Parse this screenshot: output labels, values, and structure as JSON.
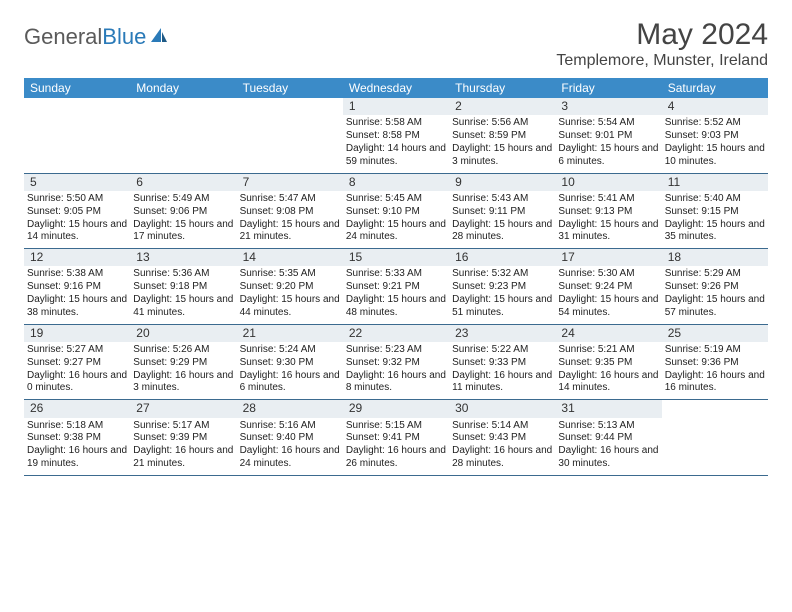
{
  "brand": {
    "part1": "General",
    "part2": "Blue"
  },
  "title": "May 2024",
  "location": "Templemore, Munster, Ireland",
  "colors": {
    "header_bg": "#3b8bc8",
    "header_text": "#ffffff",
    "daynum_bg": "#e9eef2",
    "week_border": "#3b6a8f",
    "text": "#222222",
    "logo_gray": "#5a5a5a",
    "logo_blue": "#2a7ab8"
  },
  "day_labels": [
    "Sunday",
    "Monday",
    "Tuesday",
    "Wednesday",
    "Thursday",
    "Friday",
    "Saturday"
  ],
  "weeks": [
    [
      {
        "blank": true
      },
      {
        "blank": true
      },
      {
        "blank": true
      },
      {
        "day": "1",
        "sunrise": "Sunrise: 5:58 AM",
        "sunset": "Sunset: 8:58 PM",
        "daylight": "Daylight: 14 hours and 59 minutes."
      },
      {
        "day": "2",
        "sunrise": "Sunrise: 5:56 AM",
        "sunset": "Sunset: 8:59 PM",
        "daylight": "Daylight: 15 hours and 3 minutes."
      },
      {
        "day": "3",
        "sunrise": "Sunrise: 5:54 AM",
        "sunset": "Sunset: 9:01 PM",
        "daylight": "Daylight: 15 hours and 6 minutes."
      },
      {
        "day": "4",
        "sunrise": "Sunrise: 5:52 AM",
        "sunset": "Sunset: 9:03 PM",
        "daylight": "Daylight: 15 hours and 10 minutes."
      }
    ],
    [
      {
        "day": "5",
        "sunrise": "Sunrise: 5:50 AM",
        "sunset": "Sunset: 9:05 PM",
        "daylight": "Daylight: 15 hours and 14 minutes."
      },
      {
        "day": "6",
        "sunrise": "Sunrise: 5:49 AM",
        "sunset": "Sunset: 9:06 PM",
        "daylight": "Daylight: 15 hours and 17 minutes."
      },
      {
        "day": "7",
        "sunrise": "Sunrise: 5:47 AM",
        "sunset": "Sunset: 9:08 PM",
        "daylight": "Daylight: 15 hours and 21 minutes."
      },
      {
        "day": "8",
        "sunrise": "Sunrise: 5:45 AM",
        "sunset": "Sunset: 9:10 PM",
        "daylight": "Daylight: 15 hours and 24 minutes."
      },
      {
        "day": "9",
        "sunrise": "Sunrise: 5:43 AM",
        "sunset": "Sunset: 9:11 PM",
        "daylight": "Daylight: 15 hours and 28 minutes."
      },
      {
        "day": "10",
        "sunrise": "Sunrise: 5:41 AM",
        "sunset": "Sunset: 9:13 PM",
        "daylight": "Daylight: 15 hours and 31 minutes."
      },
      {
        "day": "11",
        "sunrise": "Sunrise: 5:40 AM",
        "sunset": "Sunset: 9:15 PM",
        "daylight": "Daylight: 15 hours and 35 minutes."
      }
    ],
    [
      {
        "day": "12",
        "sunrise": "Sunrise: 5:38 AM",
        "sunset": "Sunset: 9:16 PM",
        "daylight": "Daylight: 15 hours and 38 minutes."
      },
      {
        "day": "13",
        "sunrise": "Sunrise: 5:36 AM",
        "sunset": "Sunset: 9:18 PM",
        "daylight": "Daylight: 15 hours and 41 minutes."
      },
      {
        "day": "14",
        "sunrise": "Sunrise: 5:35 AM",
        "sunset": "Sunset: 9:20 PM",
        "daylight": "Daylight: 15 hours and 44 minutes."
      },
      {
        "day": "15",
        "sunrise": "Sunrise: 5:33 AM",
        "sunset": "Sunset: 9:21 PM",
        "daylight": "Daylight: 15 hours and 48 minutes."
      },
      {
        "day": "16",
        "sunrise": "Sunrise: 5:32 AM",
        "sunset": "Sunset: 9:23 PM",
        "daylight": "Daylight: 15 hours and 51 minutes."
      },
      {
        "day": "17",
        "sunrise": "Sunrise: 5:30 AM",
        "sunset": "Sunset: 9:24 PM",
        "daylight": "Daylight: 15 hours and 54 minutes."
      },
      {
        "day": "18",
        "sunrise": "Sunrise: 5:29 AM",
        "sunset": "Sunset: 9:26 PM",
        "daylight": "Daylight: 15 hours and 57 minutes."
      }
    ],
    [
      {
        "day": "19",
        "sunrise": "Sunrise: 5:27 AM",
        "sunset": "Sunset: 9:27 PM",
        "daylight": "Daylight: 16 hours and 0 minutes."
      },
      {
        "day": "20",
        "sunrise": "Sunrise: 5:26 AM",
        "sunset": "Sunset: 9:29 PM",
        "daylight": "Daylight: 16 hours and 3 minutes."
      },
      {
        "day": "21",
        "sunrise": "Sunrise: 5:24 AM",
        "sunset": "Sunset: 9:30 PM",
        "daylight": "Daylight: 16 hours and 6 minutes."
      },
      {
        "day": "22",
        "sunrise": "Sunrise: 5:23 AM",
        "sunset": "Sunset: 9:32 PM",
        "daylight": "Daylight: 16 hours and 8 minutes."
      },
      {
        "day": "23",
        "sunrise": "Sunrise: 5:22 AM",
        "sunset": "Sunset: 9:33 PM",
        "daylight": "Daylight: 16 hours and 11 minutes."
      },
      {
        "day": "24",
        "sunrise": "Sunrise: 5:21 AM",
        "sunset": "Sunset: 9:35 PM",
        "daylight": "Daylight: 16 hours and 14 minutes."
      },
      {
        "day": "25",
        "sunrise": "Sunrise: 5:19 AM",
        "sunset": "Sunset: 9:36 PM",
        "daylight": "Daylight: 16 hours and 16 minutes."
      }
    ],
    [
      {
        "day": "26",
        "sunrise": "Sunrise: 5:18 AM",
        "sunset": "Sunset: 9:38 PM",
        "daylight": "Daylight: 16 hours and 19 minutes."
      },
      {
        "day": "27",
        "sunrise": "Sunrise: 5:17 AM",
        "sunset": "Sunset: 9:39 PM",
        "daylight": "Daylight: 16 hours and 21 minutes."
      },
      {
        "day": "28",
        "sunrise": "Sunrise: 5:16 AM",
        "sunset": "Sunset: 9:40 PM",
        "daylight": "Daylight: 16 hours and 24 minutes."
      },
      {
        "day": "29",
        "sunrise": "Sunrise: 5:15 AM",
        "sunset": "Sunset: 9:41 PM",
        "daylight": "Daylight: 16 hours and 26 minutes."
      },
      {
        "day": "30",
        "sunrise": "Sunrise: 5:14 AM",
        "sunset": "Sunset: 9:43 PM",
        "daylight": "Daylight: 16 hours and 28 minutes."
      },
      {
        "day": "31",
        "sunrise": "Sunrise: 5:13 AM",
        "sunset": "Sunset: 9:44 PM",
        "daylight": "Daylight: 16 hours and 30 minutes."
      },
      {
        "blank": true
      }
    ]
  ]
}
